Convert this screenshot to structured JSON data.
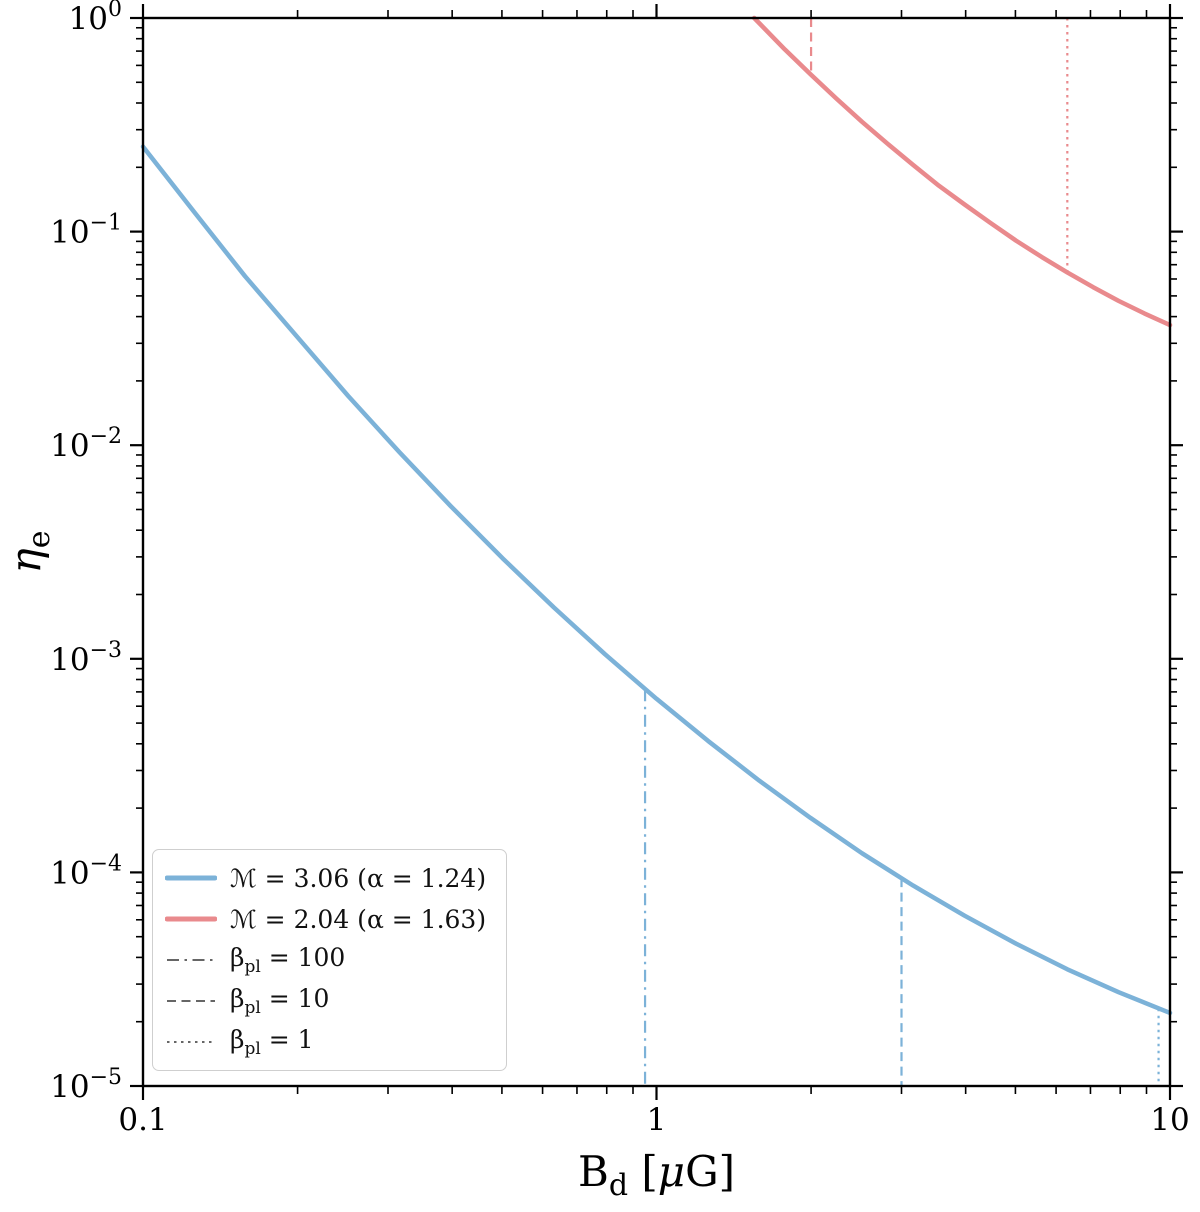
{
  "figure": {
    "background": "#ffffff"
  },
  "chart_data": {
    "type": "line",
    "title": "",
    "xlabel": {
      "pre": "B",
      "sub": "d",
      "post_open": " [",
      "post_italic": "μ",
      "post_close": "G]"
    },
    "ylabel": {
      "pre": "η",
      "sub": "e"
    },
    "x_scale": "log",
    "y_scale": "log",
    "xlim": [
      0.1,
      10
    ],
    "ylim": [
      1e-05,
      1
    ],
    "x_major_ticks": [
      0.1,
      1,
      10
    ],
    "x_major_tick_labels": [
      "0.1",
      "1",
      "10"
    ],
    "y_major_tick_base": "10",
    "y_major_tick_exponents": [
      0,
      -1,
      -2,
      -3,
      -4,
      -5
    ],
    "grid": false,
    "legend_position": "lower left",
    "series": [
      {
        "name": "ℳ = 3.06 (α = 1.24)",
        "mach": 3.06,
        "alpha": 1.24,
        "color": "#7cb2d8",
        "x": [
          0.1,
          0.126,
          0.158,
          0.2,
          0.251,
          0.316,
          0.398,
          0.501,
          0.631,
          0.794,
          1.0,
          1.259,
          1.585,
          1.995,
          2.512,
          3.162,
          3.981,
          5.012,
          6.31,
          7.943,
          10.0
        ],
        "y": [
          0.25,
          0.123,
          0.0618,
          0.032,
          0.017,
          0.00925,
          0.00517,
          0.00296,
          0.00174,
          0.00105,
          0.00065,
          0.000413,
          0.000269,
          0.00018,
          0.000123,
          8.67e-05,
          6.27e-05,
          4.64e-05,
          3.52e-05,
          2.75e-05,
          2.2e-05
        ]
      },
      {
        "name": "ℳ = 2.04 (α = 1.63)",
        "mach": 2.04,
        "alpha": 1.63,
        "color": "#e98a8d",
        "x": [
          1.55,
          1.778,
          1.995,
          2.239,
          2.512,
          2.818,
          3.162,
          3.548,
          3.981,
          4.467,
          5.012,
          5.623,
          6.31,
          7.079,
          7.943,
          8.913,
          10.0
        ],
        "y": [
          1.0,
          0.713,
          0.545,
          0.42,
          0.327,
          0.258,
          0.205,
          0.164,
          0.134,
          0.11,
          0.0908,
          0.0761,
          0.0644,
          0.055,
          0.0474,
          0.0414,
          0.0365
        ]
      }
    ],
    "beta_markers": [
      {
        "series": 0,
        "beta_pl": 100,
        "style": "dashdot",
        "x": 0.95,
        "y_from": 0.00072,
        "y_to": 1e-05
      },
      {
        "series": 0,
        "beta_pl": 10,
        "style": "dashed",
        "x": 3.0,
        "y_from": 9.4e-05,
        "y_to": 1e-05
      },
      {
        "series": 0,
        "beta_pl": 1,
        "style": "dotted",
        "x": 9.5,
        "y_from": 2.3e-05,
        "y_to": 1e-05
      },
      {
        "series": 1,
        "beta_pl": 10,
        "style": "dashed",
        "x": 2.0,
        "y_from": 1.0,
        "y_to": 0.545
      },
      {
        "series": 1,
        "beta_pl": 1,
        "style": "dotted",
        "x": 6.31,
        "y_from": 1.0,
        "y_to": 0.0644
      }
    ],
    "legend_entries": [
      {
        "sample": "series-0-line",
        "color": "#7cb2d8",
        "dash": "solid",
        "stroke_width": 5,
        "pre": "ℳ = 3.06 (α = 1.24)",
        "sub": "",
        "post": ""
      },
      {
        "sample": "series-1-line",
        "color": "#e98a8d",
        "dash": "solid",
        "stroke_width": 5,
        "pre": "ℳ = 2.04 (α = 1.63)",
        "sub": "",
        "post": ""
      },
      {
        "sample": "beta-100-line",
        "color": "#666666",
        "dash": "dashdot",
        "stroke_width": 2,
        "pre": "β",
        "sub": "pl",
        "post": " = 100"
      },
      {
        "sample": "beta-10-line",
        "color": "#666666",
        "dash": "dashed",
        "stroke_width": 2,
        "pre": "β",
        "sub": "pl",
        "post": " = 10"
      },
      {
        "sample": "beta-1-line",
        "color": "#666666",
        "dash": "dotted",
        "stroke_width": 2,
        "pre": "β",
        "sub": "pl",
        "post": " = 1"
      }
    ]
  }
}
